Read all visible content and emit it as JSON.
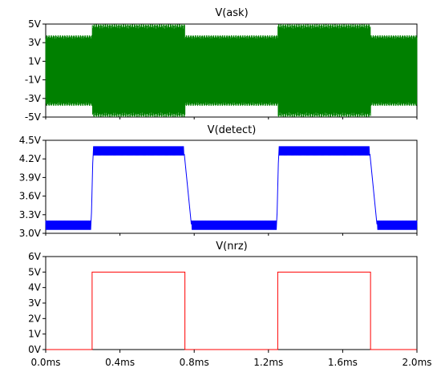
{
  "colors": {
    "ask": "#008000",
    "detect": "#0000ff",
    "nrz": "#ff0000",
    "axis": "#000000",
    "background": "#ffffff"
  },
  "chart_data": [
    {
      "type": "line",
      "title": "V(ask)",
      "xunit": "ms",
      "ylim": [
        -5,
        5
      ],
      "yticks": [
        "5V",
        "3V",
        "1V",
        "-1V",
        "-3V",
        "-5V"
      ],
      "ytick_values": [
        5,
        3,
        1,
        -1,
        -3,
        -5
      ],
      "series": [
        {
          "name": "V(ask)",
          "description_of_signal": "carrier amplitude switched by nrz",
          "amplitude_low_V": 3.8,
          "amplitude_high_V": 5.0,
          "segments_ms": [
            [
              0.0,
              0.25,
              3.8
            ],
            [
              0.25,
              0.75,
              5.0
            ],
            [
              0.75,
              1.25,
              3.8
            ],
            [
              1.25,
              1.75,
              5.0
            ],
            [
              1.75,
              2.0,
              3.8
            ]
          ]
        }
      ]
    },
    {
      "type": "line",
      "title": "V(detect)",
      "xunit": "ms",
      "ylim": [
        3.0,
        4.5
      ],
      "yticks": [
        "4.5V",
        "4.2V",
        "3.9V",
        "3.6V",
        "3.3V",
        "3.0V"
      ],
      "ytick_values": [
        4.5,
        4.2,
        3.9,
        3.6,
        3.3,
        3.0
      ],
      "series": [
        {
          "name": "V(detect)",
          "points": [
            [
              0.0,
              3.13
            ],
            [
              0.245,
              3.13
            ],
            [
              0.255,
              4.33
            ],
            [
              0.745,
              4.33
            ],
            [
              0.785,
              3.13
            ],
            [
              1.245,
              3.13
            ],
            [
              1.255,
              4.33
            ],
            [
              1.745,
              4.33
            ],
            [
              1.785,
              3.13
            ],
            [
              2.0,
              3.13
            ]
          ],
          "ripple_V": 0.15
        }
      ]
    },
    {
      "type": "line",
      "title": "V(nrz)",
      "xunit": "ms",
      "ylim": [
        0,
        6
      ],
      "yticks": [
        "6V",
        "5V",
        "4V",
        "3V",
        "2V",
        "1V",
        "0V"
      ],
      "ytick_values": [
        6,
        5,
        4,
        3,
        2,
        1,
        0
      ],
      "series": [
        {
          "name": "V(nrz)",
          "points": [
            [
              0.0,
              0
            ],
            [
              0.25,
              0
            ],
            [
              0.25,
              5
            ],
            [
              0.75,
              5
            ],
            [
              0.75,
              0
            ],
            [
              1.25,
              0
            ],
            [
              1.25,
              5
            ],
            [
              1.75,
              5
            ],
            [
              1.75,
              0
            ],
            [
              2.0,
              0
            ]
          ]
        }
      ]
    }
  ],
  "xaxis": {
    "ticks": [
      "0.0ms",
      "0.4ms",
      "0.8ms",
      "1.2ms",
      "1.6ms",
      "2.0ms"
    ],
    "tick_values": [
      0.0,
      0.4,
      0.8,
      1.2,
      1.6,
      2.0
    ],
    "range": [
      0.0,
      2.0
    ]
  }
}
